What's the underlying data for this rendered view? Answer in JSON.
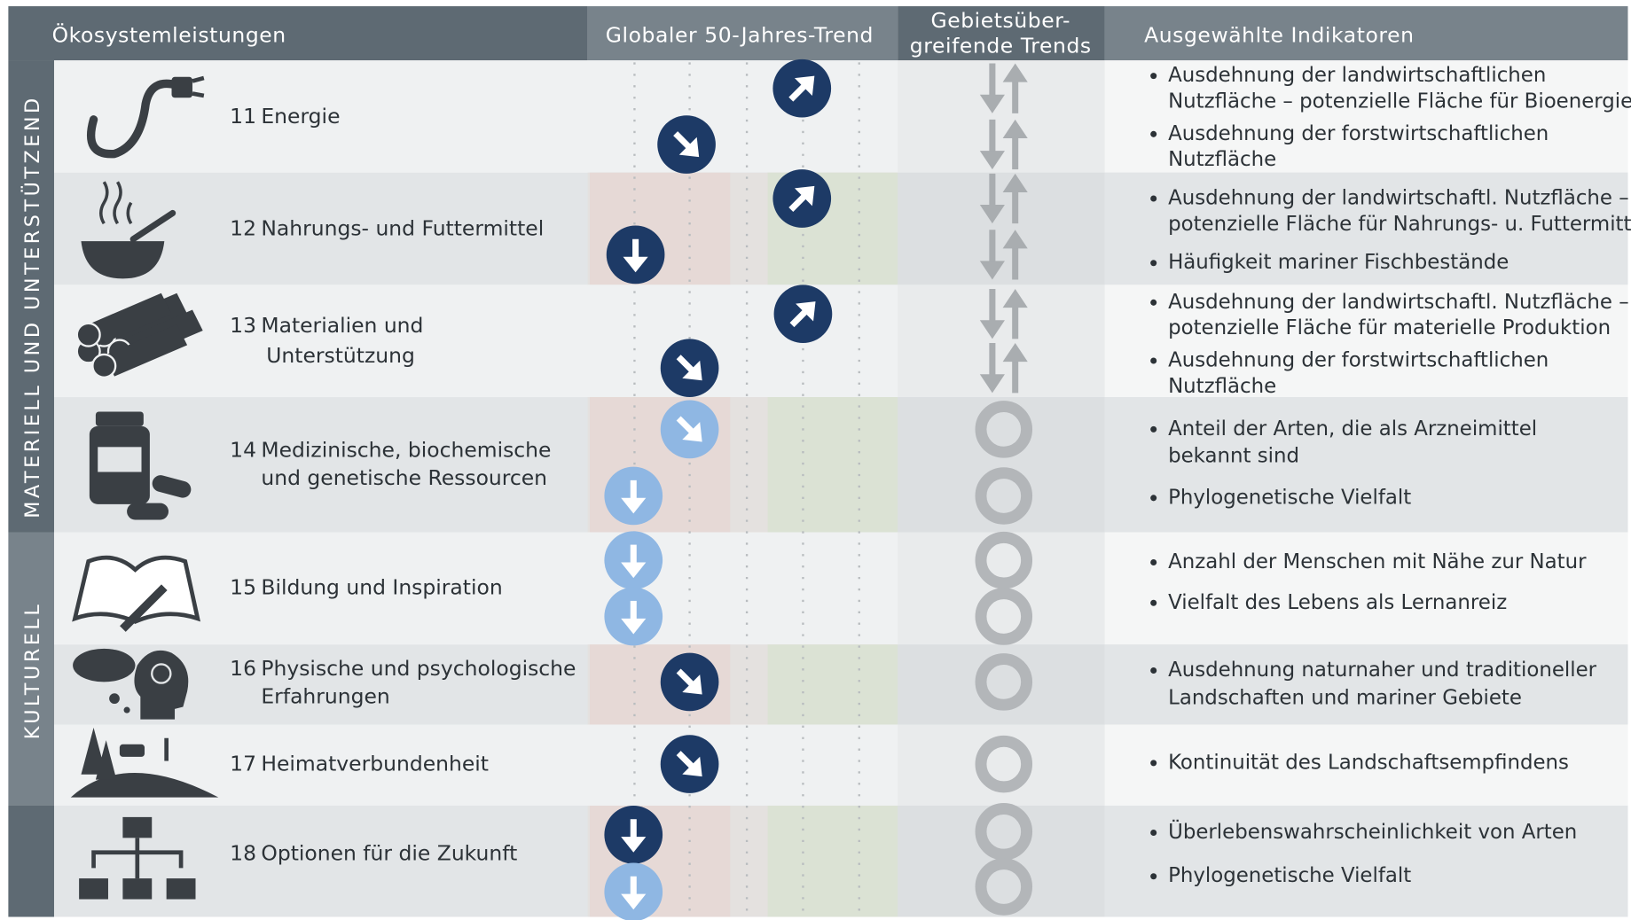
{
  "header": {
    "services": "Ökosystemleistungen",
    "global_trend": "Globaler 50-Jahres-Trend",
    "regional_trend": [
      "Gebietsüber-",
      "greifende Trends"
    ],
    "indicators": "Ausgewählte Indikatoren"
  },
  "groups": [
    "MATERIELL UND UNTERSTÜTZEND",
    "KULTURELL"
  ],
  "rows": [
    {
      "number": 11,
      "name": [
        "Energie"
      ],
      "indicators": [
        [
          "Ausdehnung der landwirtschaftlichen",
          "Nutzfläche – potenzielle Fläche für Bioenergie"
        ],
        [
          "Ausdehnung der forstwirtschaftlichen",
          "Nutzfläche"
        ]
      ]
    },
    {
      "number": 12,
      "name": [
        "Nahrungs- und Futtermittel"
      ],
      "indicators": [
        [
          "Ausdehnung der landwirtschaftl. Nutzfläche –",
          "potenzielle Fläche für Nahrungs- u. Futtermittel"
        ],
        [
          "Häufigkeit mariner Fischbestände"
        ]
      ]
    },
    {
      "number": 13,
      "name": [
        "Materialien und",
        "Unterstützung"
      ],
      "indicators": [
        [
          "Ausdehnung der landwirtschaftl. Nutzfläche –",
          "potenzielle Fläche für materielle Produktion"
        ],
        [
          "Ausdehnung der forstwirtschaftlichen",
          "Nutzfläche"
        ]
      ]
    },
    {
      "number": 14,
      "name": [
        "Medizinische, biochemische",
        "und genetische Ressourcen"
      ],
      "indicators": [
        [
          "Anteil der Arten, die als Arzneimittel",
          "bekannt sind"
        ],
        [
          "Phylogenetische Vielfalt"
        ]
      ]
    },
    {
      "number": 15,
      "name": [
        "Bildung und Inspiration"
      ],
      "indicators": [
        [
          "Anzahl der Menschen mit Nähe zur Natur"
        ],
        [
          "Vielfalt des Lebens als Lernanreiz"
        ]
      ]
    },
    {
      "number": 16,
      "name": [
        "Physische und psychologische",
        "Erfahrungen"
      ],
      "indicators": [
        [
          "Ausdehnung naturnaher und traditioneller",
          "Landschaften und mariner Gebiete"
        ]
      ]
    },
    {
      "number": 17,
      "name": [
        "Heimatverbundenheit"
      ],
      "indicators": [
        [
          "Kontinuität des Landschaftsempfindens"
        ]
      ]
    },
    {
      "number": 18,
      "name": [
        "Optionen für die Zukunft"
      ],
      "indicators": [
        [
          "Überlebenswahrscheinlichkeit von Arten"
        ],
        [
          "Phylogenetische Vielfalt"
        ]
      ]
    }
  ]
}
